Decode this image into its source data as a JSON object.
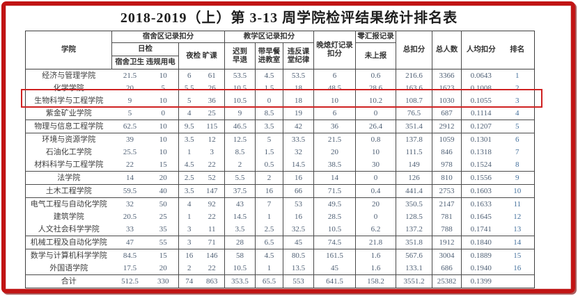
{
  "title": "2018-2019（上）第 3-13 周学院检评结果统计排名表",
  "headers": {
    "college": "学院",
    "dorm_group": "宿舍区记录扣分",
    "day_check": "日检",
    "day_sub": "宿舍卫生 违规用电",
    "night_absent": "夜检 旷课",
    "teach_group": "教学区记录扣分",
    "late": "迟到\n早退",
    "breakfast": "带早餐\n进教室",
    "discipline": "违反课\n堂纪律",
    "lights": "晚熄灯记录\n扣分",
    "zero_report": "零汇报记录",
    "not_reported": "未上报",
    "total_deduction": "总扣分",
    "total_people": "总人数",
    "per_capita": "人均扣分",
    "rank": "排名"
  },
  "table": {
    "total_label": "合计",
    "rows": [
      {
        "name": "经济与管理学院",
        "values": [
          "21.5",
          "10",
          "6",
          "61",
          "53.5",
          "4.5",
          "53.5",
          "6",
          "0.6",
          "216.6",
          "3366",
          "0.0643"
        ],
        "rank": "1"
      },
      {
        "name": "化学学院",
        "values": [
          "20",
          "5",
          "5.5",
          "26",
          "10.5",
          "1.5",
          "18",
          "48.5",
          "28.6",
          "163.6",
          "1623",
          "0.1008"
        ],
        "rank": "2"
      },
      {
        "name": "生物科学与工程学院",
        "values": [
          "9",
          "10",
          "5",
          "36",
          "10.5",
          "0",
          "18",
          "10",
          "10.2",
          "108.7",
          "1030",
          "0.1055"
        ],
        "rank": "3"
      },
      {
        "name": "紫金矿业学院",
        "values": [
          "5",
          "0",
          "4",
          "25",
          "9",
          "8.5",
          "19",
          "6",
          "0",
          "76.5",
          "687",
          "0.1114"
        ],
        "rank": "4"
      },
      {
        "name": "物理与信息工程学院",
        "values": [
          "62.5",
          "10",
          "9.5",
          "115",
          "46.5",
          "3.5",
          "42",
          "36",
          "26.4",
          "351.4",
          "2912",
          "0.1207"
        ],
        "rank": "5"
      },
      {
        "name": "环境与资源学院",
        "values": [
          "39",
          "10",
          "3.5",
          "12",
          "12.5",
          "5",
          "33.5",
          "21.5",
          "0.8",
          "137.8",
          "1059",
          "0.1301"
        ],
        "rank": "6"
      },
      {
        "name": "石油化工学院",
        "values": [
          "25.5",
          "10",
          "1",
          "3",
          "8.5",
          "1.5",
          "32",
          "20",
          "10",
          "111.5",
          "846",
          "0.1318"
        ],
        "rank": "7"
      },
      {
        "name": "材料科学与工程学院",
        "values": [
          "22",
          "15",
          "4.5",
          "22",
          "2",
          "0.5",
          "14.5",
          "38.5",
          "30",
          "149",
          "978",
          "0.1524"
        ],
        "rank": "8"
      },
      {
        "name": "法学院",
        "values": [
          "14",
          "20",
          "2.5",
          "52",
          "5.5",
          "2",
          "16",
          "14",
          "0",
          "126",
          "810",
          "0.1556"
        ],
        "rank": "9"
      },
      {
        "name": "土木工程学院",
        "values": [
          "59.5",
          "40",
          "3.5",
          "147",
          "37.5",
          "16",
          "66",
          "71.5",
          "0.4",
          "441.4",
          "2753",
          "0.1603"
        ],
        "rank": "10"
      },
      {
        "name": "电气工程与自动化学院",
        "values": [
          "32",
          "50",
          "4",
          "92",
          "43",
          "7",
          "53",
          "49.5",
          "20",
          "350.5",
          "2147",
          "0.1633"
        ],
        "rank": "11"
      },
      {
        "name": "建筑学院",
        "values": [
          "20.5",
          "25",
          "1",
          "22",
          "14.5",
          "1",
          "16",
          "28.5",
          "0",
          "128.5",
          "781",
          "0.1645"
        ],
        "rank": "12"
      },
      {
        "name": "人文社会科学学院",
        "values": [
          "33",
          "35",
          "3",
          "11",
          "3.5",
          "2.5",
          "32.5",
          "10.5",
          "6.2",
          "137.2",
          "788",
          "0.1741"
        ],
        "rank": "13"
      },
      {
        "name": "机械工程及自动化学院",
        "values": [
          "47",
          "55",
          "3",
          "71",
          "28",
          "6.5",
          "45",
          "74.5",
          "21.8",
          "351.8",
          "1912",
          "0.1840"
        ],
        "rank": "14"
      },
      {
        "name": "数学与计算机科学学院",
        "values": [
          "84.5",
          "15",
          "16",
          "146",
          "58",
          "4.5",
          "80.5",
          "161.5",
          "1.6",
          "567.6",
          "3004",
          "0.1889"
        ],
        "rank": "15"
      },
      {
        "name": "外国语学院",
        "values": [
          "17.5",
          "20",
          "2",
          "22",
          "10.5",
          "1",
          "13.5",
          "45",
          "1.6",
          "133.1",
          "686",
          "0.1940"
        ],
        "rank": "16"
      },
      {
        "name": "合计",
        "values": [
          "512.5",
          "330",
          "74",
          "863",
          "353.5",
          "65.5",
          "553",
          "641.5",
          "158.2",
          "3551.2",
          "25382",
          "0.1399"
        ],
        "rank": ""
      }
    ]
  },
  "annotation": {
    "highlighted_college": "生物科学与工程学院"
  },
  "colors": {
    "frame_red": "#c11414",
    "highlight_red": "#cf2222",
    "border_gray": "#4a4a4a"
  }
}
